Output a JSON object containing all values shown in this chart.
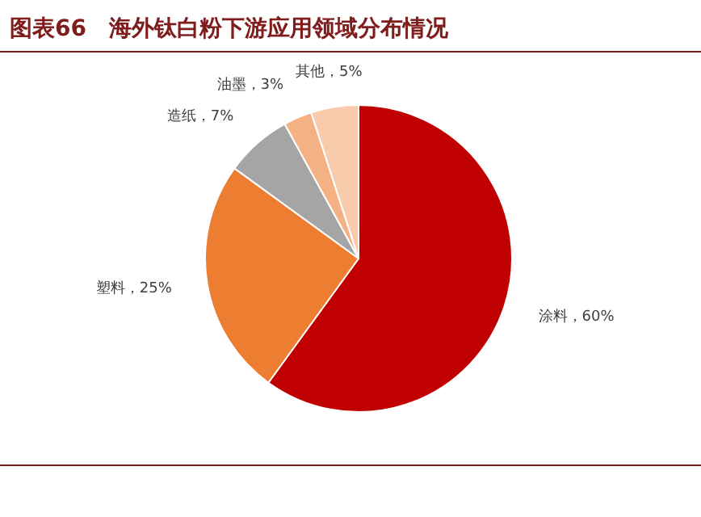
{
  "chart_data": {
    "type": "pie",
    "title": "图表66　海外钛白粉下游应用领域分布情况",
    "categories": [
      "涂料",
      "塑料",
      "造纸",
      "油墨",
      "其他"
    ],
    "values": [
      60,
      25,
      7,
      3,
      5
    ],
    "colors": [
      "#c00000",
      "#ed7d31",
      "#a5a5a5",
      "#f4b183",
      "#f8cbad"
    ],
    "value_labels": [
      "60%",
      "25%",
      "7%",
      "3%",
      "5%"
    ]
  }
}
